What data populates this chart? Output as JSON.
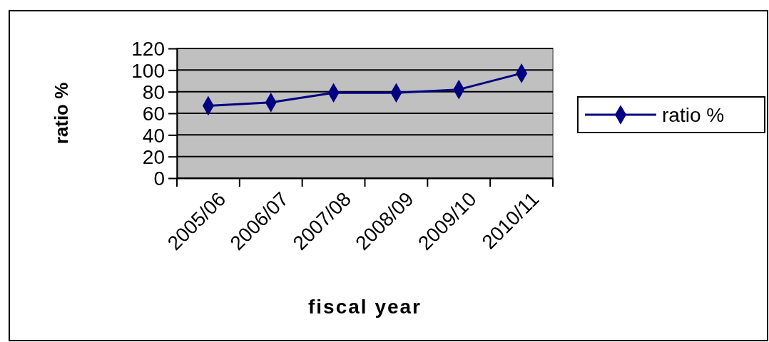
{
  "chart_data": {
    "type": "line",
    "xlabel": "fiscal year",
    "ylabel": "ratio %",
    "categories": [
      "2005/06",
      "2006/07",
      "2007/08",
      "2008/09",
      "2009/10",
      "2010/11"
    ],
    "series": [
      {
        "name": "ratio %",
        "color": "#000080",
        "values": [
          67,
          70,
          79,
          79,
          82,
          97
        ]
      }
    ],
    "ylim": [
      0,
      120
    ],
    "yticks": [
      0,
      20,
      40,
      60,
      80,
      100,
      120
    ],
    "grid": "y",
    "legend": "right",
    "marker": "diamond",
    "line_style": "solid"
  }
}
